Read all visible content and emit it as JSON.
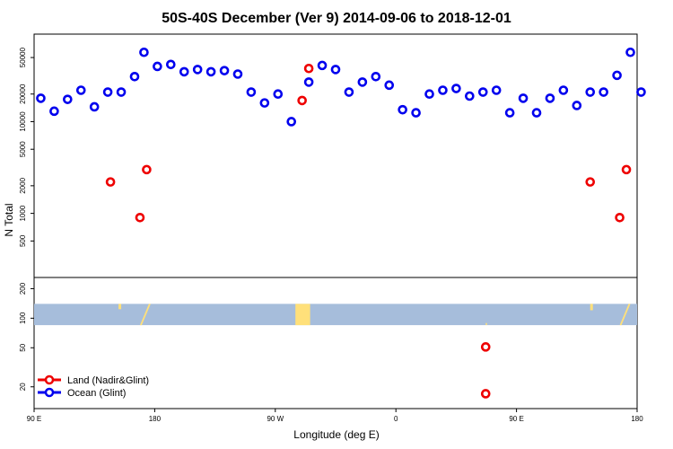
{
  "chart_data": {
    "type": "scatter",
    "title": "50S-40S December (Ver 9)   2014-09-06 to 2018-12-01",
    "xlabel": "Longitude (deg E)",
    "ylabel": "N Total",
    "x_ticks": [
      {
        "value": 90,
        "label": "90 E"
      },
      {
        "value": 180,
        "label": "180"
      },
      {
        "value": 270,
        "label": "90 W"
      },
      {
        "value": 360,
        "label": "0"
      },
      {
        "value": 450,
        "label": "90 E"
      },
      {
        "value": 540,
        "label": "180"
      }
    ],
    "xlim": [
      90,
      540
    ],
    "upper_panel": {
      "scale": "log",
      "ylim": [
        200,
        90000
      ],
      "y_ticks": [
        500,
        1000,
        2000,
        5000,
        10000,
        20000,
        50000
      ]
    },
    "lower_panel": {
      "scale": "log",
      "ylim": [
        12,
        260
      ],
      "y_ticks": [
        20,
        50,
        100,
        200
      ]
    },
    "series": [
      {
        "name": "Ocean (Glint)",
        "color": "#0000ee",
        "panel": "upper",
        "x": [
          95,
          105,
          115,
          125,
          135,
          145,
          155,
          165,
          172,
          182,
          192,
          202,
          212,
          222,
          232,
          242,
          252,
          262,
          272,
          282,
          295,
          305,
          315,
          325,
          335,
          345,
          355,
          365,
          375,
          385,
          395,
          405,
          415,
          425,
          435,
          445,
          455,
          465,
          475,
          485,
          495,
          505,
          515,
          525,
          535,
          543
        ],
        "y": [
          18000,
          13000,
          17500,
          22000,
          14500,
          21000,
          21000,
          31000,
          57000,
          40000,
          42000,
          35000,
          37000,
          35000,
          36000,
          33000,
          21000,
          16000,
          20000,
          10000,
          27000,
          41000,
          37000,
          21000,
          27000,
          31000,
          25000,
          13500,
          12500,
          20000,
          22000,
          23000,
          19000,
          21000,
          22000,
          12500,
          18000,
          12500,
          18000,
          22000,
          15000,
          21000,
          21000,
          32000,
          57000,
          21000
        ]
      },
      {
        "name": "Land (Nadir&Glint)",
        "color": "#ee0000",
        "panel": "upper",
        "x": [
          147,
          169,
          174,
          290,
          295,
          505,
          527,
          532
        ],
        "y": [
          2200,
          900,
          3000,
          17000,
          38000,
          2200,
          900,
          3000
        ]
      },
      {
        "name": "Land (Nadir&Glint)",
        "color": "#ee0000",
        "panel": "lower",
        "legend": false,
        "x": [
          427,
          427
        ],
        "y": [
          51,
          17
        ]
      }
    ],
    "coverage_band": {
      "ocean_color": "#a6bddb",
      "land_color": "#ffe07a"
    },
    "legend": {
      "placement": "bottom-left",
      "entries": [
        {
          "label": "Land (Nadir&Glint)",
          "color": "#ee0000"
        },
        {
          "label": "Ocean (Glint)",
          "color": "#0000ee"
        }
      ]
    },
    "grid": false
  }
}
